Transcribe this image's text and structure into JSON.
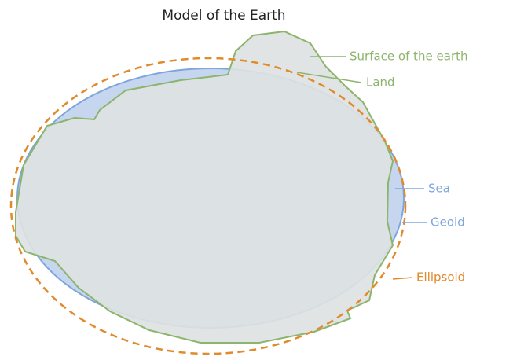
{
  "title": "Model of the Earth",
  "labels": {
    "surface": "Surface of the earth",
    "land": "Land",
    "sea": "Sea",
    "geoid": "Geoid",
    "ellipsoid": "Ellipsoid"
  }
}
